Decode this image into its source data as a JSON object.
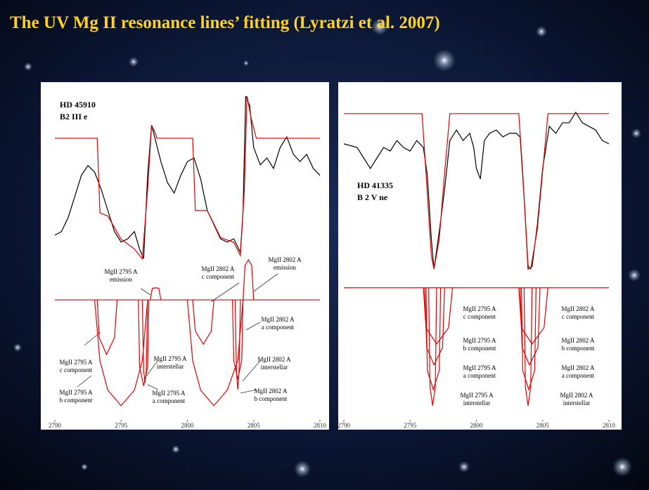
{
  "title": "The UV Mg II resonance lines’ fitting (Lyratzi et al. 2007)",
  "chart_data": [
    {
      "type": "line",
      "star": [
        "HD 45910",
        "B2 III e"
      ],
      "xlim": [
        2790,
        2810
      ],
      "ylim": [
        0,
        100
      ],
      "xticks": [
        2790,
        2795,
        2800,
        2805,
        2810
      ],
      "annotations": [
        {
          "lines": [
            "MgII 2795 A",
            "emission"
          ]
        },
        {
          "lines": [
            "MgII 2802 A",
            "c component"
          ]
        },
        {
          "lines": [
            "MgII 2802 A",
            "emission"
          ]
        },
        {
          "lines": [
            "MgII 2802 A",
            "a component"
          ]
        },
        {
          "lines": [
            "MgII 2795 A",
            "c component"
          ]
        },
        {
          "lines": [
            "MgII 2795 A",
            "interstellar"
          ]
        },
        {
          "lines": [
            "MgII 2802 A",
            "interstellar"
          ]
        },
        {
          "lines": [
            "MgII 2795 A",
            "b component"
          ]
        },
        {
          "lines": [
            "MgII 2795 A",
            "a component"
          ]
        },
        {
          "lines": [
            "MgII 2802 A",
            "b component"
          ]
        }
      ],
      "series": [
        {
          "color": "#000000",
          "x": [
            2790,
            2790.5,
            2791,
            2791.5,
            2792,
            2792.5,
            2793,
            2793.5,
            2794,
            2794.5,
            2795,
            2795.5,
            2796,
            2796.4,
            2796.7,
            2797,
            2797.3,
            2797.6,
            2798,
            2798.5,
            2799,
            2799.5,
            2800,
            2800.5,
            2801,
            2801.5,
            2802,
            2802.5,
            2803,
            2803.5,
            2804,
            2804.2,
            2804.4,
            2804.7,
            2805,
            2805.5,
            2806,
            2806.5,
            2807,
            2807.5,
            2808,
            2808.5,
            2809,
            2809.5,
            2810
          ],
          "values": [
            56.2,
            57.3,
            61.5,
            67.9,
            74.4,
            77.4,
            75.4,
            70.1,
            63.7,
            57.3,
            54.1,
            55.1,
            57.3,
            51.9,
            49.1,
            74.4,
            89.7,
            85,
            78.6,
            72.2,
            69,
            74.4,
            78.6,
            79.7,
            73.3,
            63.7,
            59.4,
            55.1,
            54.1,
            55.1,
            50.9,
            63.7,
            98.5,
            95.7,
            82.9,
            77.6,
            79.7,
            76.5,
            82.9,
            86.1,
            80.8,
            78.6,
            80.8,
            76.5,
            74.4
          ]
        },
        {
          "color": "#e00000",
          "x": [
            2790,
            2793.2,
            2793.4,
            2794,
            2795,
            2796,
            2796.6,
            2797,
            2797.3,
            2797.6,
            2797.7,
            2800.4,
            2800.6,
            2801.5,
            2802.5,
            2803.5,
            2804,
            2804.3,
            2804.5,
            2804.8,
            2805.2,
            2810
          ],
          "values": [
            85.7,
            85.7,
            63,
            62,
            55,
            52,
            49,
            70,
            89.7,
            87,
            85.7,
            85.7,
            63.7,
            63.7,
            55.5,
            54,
            50,
            70,
            98.5,
            92,
            85.7,
            85.7
          ]
        },
        {
          "color": "#e00000",
          "x": [
            2790,
            2810
          ],
          "values": [
            36.5,
            36.5
          ]
        },
        {
          "color": "#e00000",
          "x": [
            2793.2,
            2793.35,
            2793.9,
            2794.5,
            2794.7
          ],
          "values": [
            36.5,
            25,
            19.9,
            25,
            36.5
          ]
        },
        {
          "color": "#e00000",
          "x": [
            2793,
            2793.4,
            2794,
            2795,
            2796,
            2796.6,
            2797
          ],
          "values": [
            36.5,
            18,
            9,
            4.3,
            9,
            18,
            36.5
          ]
        },
        {
          "color": "#e00000",
          "x": [
            2796.3,
            2796.4,
            2796.7,
            2797,
            2797.1
          ],
          "values": [
            36.5,
            16,
            10.3,
            16,
            36.5
          ]
        },
        {
          "color": "#e00000",
          "x": [
            2796.6,
            2796.7,
            2796.8,
            2796.9,
            2797
          ],
          "values": [
            36.5,
            15,
            11.3,
            15,
            36.5
          ]
        },
        {
          "color": "#e00000",
          "x": [
            2797.2,
            2797.35,
            2797.6,
            2797.85,
            2798
          ],
          "values": [
            36.5,
            40,
            40.2,
            40,
            36.5
          ]
        },
        {
          "color": "#e00000",
          "x": [
            2800.4,
            2800.6,
            2801.2,
            2801.8,
            2802
          ],
          "values": [
            36.5,
            27,
            23,
            27,
            36.5
          ]
        },
        {
          "color": "#e00000",
          "x": [
            2800,
            2800.4,
            2801,
            2802,
            2803,
            2803.8,
            2804.2
          ],
          "values": [
            36.5,
            18,
            9,
            4.3,
            9,
            18,
            36.5
          ]
        },
        {
          "color": "#e00000",
          "x": [
            2803.4,
            2803.5,
            2803.8,
            2804.1,
            2804.2
          ],
          "values": [
            36.5,
            18,
            12.4,
            18,
            36.5
          ]
        },
        {
          "color": "#e00000",
          "x": [
            2803.6,
            2803.7,
            2803.8,
            2803.9,
            2804
          ],
          "values": [
            36.5,
            15,
            9.2,
            15,
            36.5
          ]
        },
        {
          "color": "#e00000",
          "x": [
            2804.2,
            2804.35,
            2804.6,
            2804.85,
            2805
          ],
          "values": [
            36.5,
            47,
            48.7,
            47,
            36.5
          ]
        }
      ]
    },
    {
      "type": "line",
      "star": [
        "HD 41335",
        "B 2 V ne"
      ],
      "xlim": [
        2790,
        2810
      ],
      "ylim": [
        0,
        100
      ],
      "xticks": [
        2790,
        2795,
        2800,
        2805,
        2810
      ],
      "annotations": [
        {
          "lines": [
            "MgII 2795 A",
            "c component"
          ]
        },
        {
          "lines": [
            "MgII 2795 A",
            "b component"
          ]
        },
        {
          "lines": [
            "MgII 2795 A",
            "a component"
          ]
        },
        {
          "lines": [
            "MgII 2795 A",
            "interstellar"
          ]
        },
        {
          "lines": [
            "MgII 2802 A",
            "c component"
          ]
        },
        {
          "lines": [
            "MgII 2802 A",
            "b component"
          ]
        },
        {
          "lines": [
            "MgII 2802 A",
            "a component"
          ]
        },
        {
          "lines": [
            "MgII 2802 A",
            "interstellar"
          ]
        }
      ],
      "series": [
        {
          "color": "#000000",
          "x": [
            2790,
            2791,
            2791.5,
            2792,
            2792.5,
            2793,
            2793.5,
            2794,
            2794.5,
            2795,
            2795.5,
            2796,
            2796.3,
            2796.6,
            2796.8,
            2797.2,
            2797.6,
            2798,
            2798.5,
            2799,
            2799.5,
            2799.8,
            2800,
            2800.3,
            2800.6,
            2801,
            2801.5,
            2802,
            2802.5,
            2803,
            2803.3,
            2803.6,
            2803.9,
            2804.2,
            2804.6,
            2805,
            2805.5,
            2806,
            2806.5,
            2807,
            2807.5,
            2808,
            2808.5,
            2809,
            2809.5,
            2810
          ],
          "values": [
            84,
            82.9,
            79.7,
            76.5,
            79.7,
            82.9,
            81.8,
            85,
            82.9,
            81.8,
            85,
            82.9,
            74.4,
            55.1,
            45.9,
            57.3,
            70.1,
            85,
            88.2,
            85,
            87.2,
            82.9,
            76.5,
            73.3,
            85,
            87.2,
            88.2,
            86.1,
            87.2,
            87.2,
            86.1,
            67.9,
            45.9,
            46.6,
            59.4,
            76.5,
            89.3,
            87.2,
            90.4,
            90.4,
            93.6,
            90.4,
            89.3,
            88.2,
            85,
            84
          ]
        },
        {
          "color": "#e00000",
          "x": [
            2790,
            2795.9,
            2796.2,
            2796.6,
            2796.8,
            2797.2,
            2797.6,
            2798,
            2803.2,
            2803.5,
            2803.9,
            2804.1,
            2804.6,
            2805.1,
            2805.4,
            2810
          ],
          "values": [
            93.2,
            93.2,
            75,
            50,
            45.9,
            55,
            75,
            93.2,
            93.2,
            75,
            47,
            45.9,
            58,
            80,
            93.2,
            93.2
          ]
        },
        {
          "color": "#e00000",
          "x": [
            2790,
            2810
          ],
          "values": [
            40.2,
            40.2
          ]
        },
        {
          "color": "#e00000",
          "x": [
            2796,
            2796.2,
            2797,
            2797.9,
            2798.2
          ],
          "values": [
            40.2,
            28,
            23.1,
            28,
            40.2
          ]
        },
        {
          "color": "#e00000",
          "x": [
            2796.1,
            2796.25,
            2796.8,
            2797.45,
            2797.6
          ],
          "values": [
            40.2,
            22,
            16.7,
            22,
            40.2
          ]
        },
        {
          "color": "#e00000",
          "x": [
            2796.2,
            2796.3,
            2796.75,
            2797.2,
            2797.3
          ],
          "values": [
            40.2,
            15,
            9.2,
            15,
            40.2
          ]
        },
        {
          "color": "#e00000",
          "x": [
            2796.4,
            2796.5,
            2796.7,
            2796.9,
            2797
          ],
          "values": [
            40.2,
            10,
            4.3,
            10,
            40.2
          ]
        },
        {
          "color": "#e00000",
          "x": [
            2803.2,
            2803.4,
            2804.2,
            2805.1,
            2805.4
          ],
          "values": [
            40.2,
            28,
            23.1,
            28,
            40.2
          ]
        },
        {
          "color": "#e00000",
          "x": [
            2803.3,
            2803.45,
            2804,
            2804.65,
            2804.8
          ],
          "values": [
            40.2,
            22,
            16.7,
            22,
            40.2
          ]
        },
        {
          "color": "#e00000",
          "x": [
            2803.4,
            2803.5,
            2803.95,
            2804.4,
            2804.5
          ],
          "values": [
            40.2,
            15,
            9.2,
            15,
            40.2
          ]
        },
        {
          "color": "#e00000",
          "x": [
            2803.6,
            2803.7,
            2803.9,
            2804.1,
            2804.2
          ],
          "values": [
            40.2,
            10,
            4.3,
            10,
            40.2
          ]
        }
      ]
    }
  ]
}
